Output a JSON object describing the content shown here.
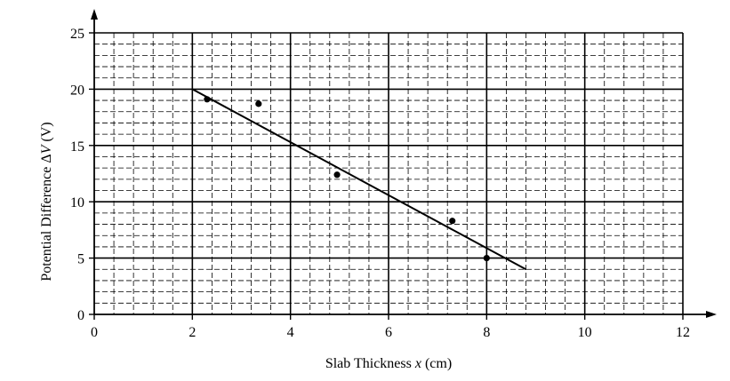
{
  "chart_data": {
    "type": "scatter",
    "xlabel_prefix": "Slab Thickness ",
    "xlabel_var": "x",
    "xlabel_suffix": " (cm)",
    "ylabel_prefix": "Potential Difference Δ",
    "ylabel_var": "V",
    "ylabel_suffix": " (V)",
    "xlim": [
      0,
      12
    ],
    "ylim": [
      0,
      25
    ],
    "x_ticks": [
      "0",
      "2",
      "4",
      "6",
      "8",
      "10",
      "12"
    ],
    "y_ticks": [
      "0",
      "5",
      "10",
      "15",
      "20",
      "25"
    ],
    "grid": "major every 2 cm and 5 V, minor dashed every 0.4 cm and 1 V",
    "points": [
      {
        "x": 2.3,
        "y": 19.1
      },
      {
        "x": 3.35,
        "y": 18.7
      },
      {
        "x": 4.95,
        "y": 12.4
      },
      {
        "x": 7.3,
        "y": 8.3
      },
      {
        "x": 8.0,
        "y": 5.0
      }
    ],
    "best_fit_line": {
      "x": [
        2.0,
        8.8
      ],
      "y": [
        20.0,
        4.0
      ]
    },
    "colors": {
      "line": "#000000",
      "points": "#000000",
      "grid": "#000000"
    }
  }
}
